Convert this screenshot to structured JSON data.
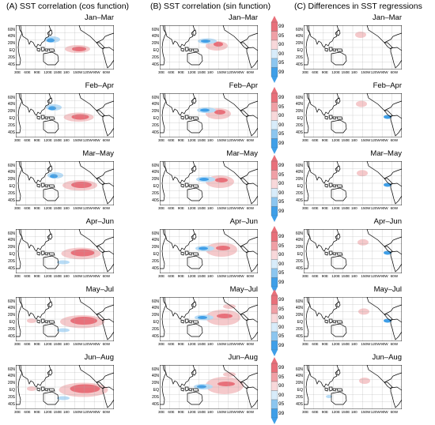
{
  "columns": [
    {
      "title": "(A) SST correlation (cos function)"
    },
    {
      "title": "(B) SST correlation (sin function)"
    },
    {
      "title": "(C) Differences in SST regressions"
    }
  ],
  "seasons": [
    "Jan–Mar",
    "Feb–Apr",
    "Mar–May",
    "Apr–Jun",
    "May–Jul",
    "Jun–Aug"
  ],
  "lat_labels": [
    "60N",
    "40N",
    "20N",
    "EQ",
    "20S",
    "40S"
  ],
  "lon_labels": [
    "30E",
    "60E",
    "90E",
    "120E",
    "150E",
    "180",
    "150W",
    "120W",
    "90W",
    "60W"
  ],
  "colorbar_labels": [
    "99",
    "95",
    "90",
    "90",
    "95",
    "99"
  ],
  "colors": {
    "pos_strong": "#e8707a",
    "pos_weak": "#f5c9cb",
    "neg_strong": "#3f9fe8",
    "neg_weak": "#b8dcf6",
    "land": "#000000"
  },
  "colorbar_colors": [
    "#e8707a",
    "#f0a0a6",
    "#f8d8da",
    "#d8ecfa",
    "#8cc6f0",
    "#3f9fe8"
  ]
}
